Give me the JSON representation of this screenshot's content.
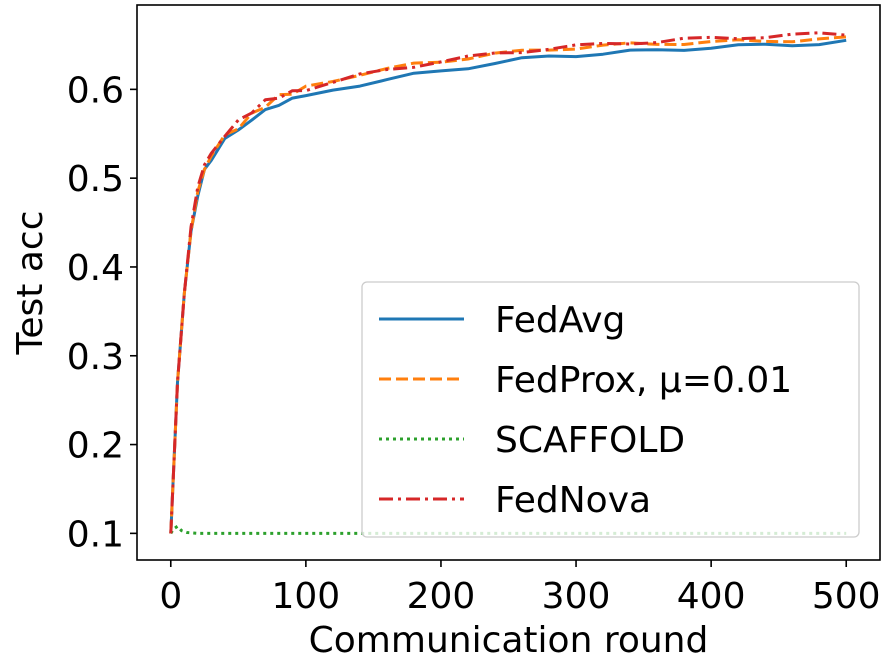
{
  "chart_data": {
    "type": "line",
    "title": "",
    "xlabel": "Communication round",
    "ylabel": "Test acc",
    "xlim": [
      -25,
      525
    ],
    "ylim": [
      0.07,
      0.695
    ],
    "xticks": [
      0,
      100,
      200,
      300,
      400,
      500
    ],
    "yticks": [
      0.1,
      0.2,
      0.3,
      0.4,
      0.5,
      0.6
    ],
    "xtick_labels": [
      "0",
      "100",
      "200",
      "300",
      "400",
      "500"
    ],
    "ytick_labels": [
      "0.1",
      "0.2",
      "0.3",
      "0.4",
      "0.5",
      "0.6"
    ],
    "grid": false,
    "legend_position": "lower-right",
    "series": [
      {
        "name": "FedAvg",
        "color": "#1f77b4",
        "style": "solid",
        "x": [
          0,
          5,
          10,
          15,
          20,
          25,
          30,
          40,
          50,
          60,
          70,
          80,
          90,
          100,
          120,
          140,
          160,
          180,
          200,
          220,
          240,
          260,
          280,
          300,
          320,
          340,
          360,
          380,
          400,
          420,
          440,
          460,
          480,
          500
        ],
        "values": [
          0.1,
          0.27,
          0.37,
          0.44,
          0.48,
          0.51,
          0.52,
          0.545,
          0.555,
          0.568,
          0.578,
          0.583,
          0.588,
          0.592,
          0.6,
          0.607,
          0.613,
          0.618,
          0.622,
          0.627,
          0.632,
          0.636,
          0.639,
          0.641,
          0.643,
          0.645,
          0.646,
          0.648,
          0.65,
          0.651,
          0.652,
          0.653,
          0.654,
          0.656
        ]
      },
      {
        "name": "FedProx, μ=0.01",
        "color": "#ff7f0e",
        "style": "dashed",
        "x": [
          0,
          5,
          10,
          15,
          20,
          25,
          30,
          40,
          50,
          60,
          70,
          80,
          90,
          100,
          120,
          140,
          160,
          180,
          200,
          220,
          240,
          260,
          280,
          300,
          320,
          340,
          360,
          380,
          400,
          420,
          440,
          460,
          480,
          500
        ],
        "values": [
          0.1,
          0.27,
          0.37,
          0.44,
          0.485,
          0.51,
          0.525,
          0.548,
          0.56,
          0.572,
          0.582,
          0.59,
          0.595,
          0.6,
          0.608,
          0.615,
          0.62,
          0.626,
          0.63,
          0.634,
          0.638,
          0.641,
          0.644,
          0.646,
          0.648,
          0.65,
          0.651,
          0.652,
          0.653,
          0.654,
          0.655,
          0.656,
          0.657,
          0.658
        ]
      },
      {
        "name": "SCAFFOLD",
        "color": "#2ca02c",
        "style": "dotted",
        "x": [
          0,
          2,
          5,
          8,
          12,
          20,
          40,
          100,
          200,
          300,
          400,
          500
        ],
        "values": [
          0.1,
          0.105,
          0.108,
          0.103,
          0.101,
          0.1,
          0.1,
          0.1,
          0.1,
          0.1,
          0.1,
          0.1
        ]
      },
      {
        "name": "FedNova",
        "color": "#d62728",
        "style": "dashdot",
        "x": [
          0,
          5,
          10,
          15,
          20,
          25,
          30,
          40,
          50,
          60,
          70,
          80,
          90,
          100,
          120,
          140,
          160,
          180,
          200,
          220,
          240,
          260,
          280,
          300,
          320,
          340,
          360,
          380,
          400,
          420,
          440,
          460,
          480,
          500
        ],
        "values": [
          0.1,
          0.27,
          0.37,
          0.445,
          0.49,
          0.515,
          0.528,
          0.55,
          0.562,
          0.574,
          0.584,
          0.592,
          0.597,
          0.603,
          0.611,
          0.618,
          0.624,
          0.629,
          0.634,
          0.638,
          0.642,
          0.645,
          0.648,
          0.65,
          0.652,
          0.654,
          0.655,
          0.657,
          0.658,
          0.659,
          0.66,
          0.661,
          0.662,
          0.662
        ]
      }
    ]
  }
}
